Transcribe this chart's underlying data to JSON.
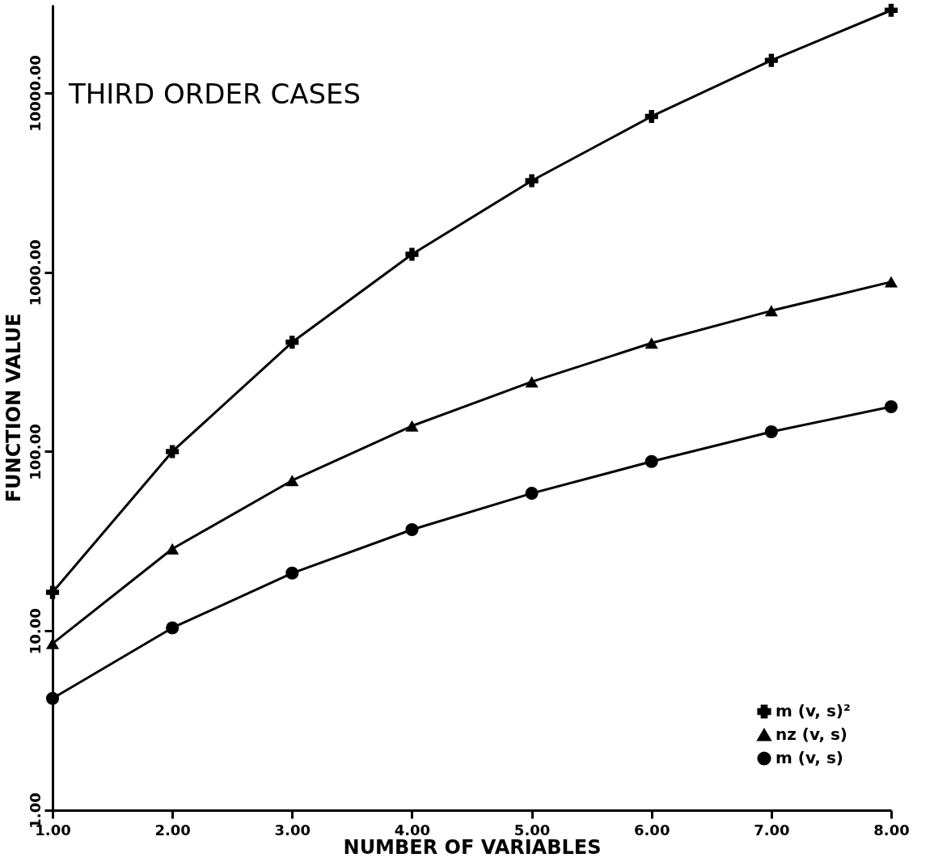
{
  "chart_data": {
    "type": "line",
    "title": "THIRD ORDER CASES",
    "xlabel": "NUMBER OF VARIABLES",
    "ylabel": "FUNCTION VALUE",
    "x": [
      1,
      2,
      3,
      4,
      5,
      6,
      7,
      8
    ],
    "series": [
      {
        "name": "m (v, s)²",
        "color": "#000000",
        "marker": "cross",
        "values": [
          16.4,
          100,
          407,
          1260,
          3240,
          7400,
          15200,
          28900
        ]
      },
      {
        "name": "nz (v, s)",
        "color": "#000000",
        "marker": "triangle",
        "values": [
          8.5,
          28.7,
          69,
          139,
          245,
          403,
          610,
          884
        ]
      },
      {
        "name": "m (v, s)",
        "color": "#000000",
        "marker": "circle",
        "values": [
          4.2,
          10.4,
          21,
          36.7,
          58.5,
          88,
          129,
          178
        ]
      }
    ],
    "log": "y",
    "xlim": [
      1,
      8
    ],
    "xticks": [
      {
        "value": 1,
        "label": "1.00"
      },
      {
        "value": 2,
        "label": "2.00"
      },
      {
        "value": 3,
        "label": "3.00"
      },
      {
        "value": 4,
        "label": "4.00"
      },
      {
        "value": 5,
        "label": "5.00"
      },
      {
        "value": 6,
        "label": "6.00"
      },
      {
        "value": 7,
        "label": "7.00"
      },
      {
        "value": 8,
        "label": "8.00"
      }
    ],
    "ylim": [
      1,
      31000
    ],
    "yticks": [
      {
        "value": 1,
        "label": "1.00"
      },
      {
        "value": 10,
        "label": "10.00"
      },
      {
        "value": 100,
        "label": "100.00"
      },
      {
        "value": 1000,
        "label": "1000.00"
      },
      {
        "value": 10000,
        "label": "10000.00"
      }
    ],
    "legend": "bottom right",
    "grid": false,
    "line_style": "solid"
  }
}
